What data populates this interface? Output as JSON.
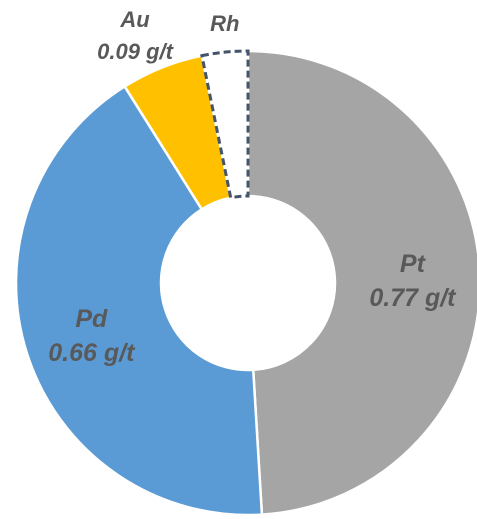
{
  "chart_data": {
    "type": "pie",
    "variant": "donut",
    "title": "",
    "unit": "g/t",
    "slices": [
      {
        "name": "Pt",
        "value": 0.77,
        "value_label": "0.77 g/t",
        "color": "#A5A5A5"
      },
      {
        "name": "Pd",
        "value": 0.66,
        "value_label": "0.66 g/t",
        "color": "#5B9BD5"
      },
      {
        "name": "Au",
        "value": 0.09,
        "value_label": "0.09 g/t",
        "color": "#FFC000"
      },
      {
        "name": "Rh",
        "value": 0.05,
        "value_label": "",
        "color": "#FFFFFF",
        "style": "dashed-outline"
      }
    ],
    "legend": "none",
    "label_color": "#595959",
    "outline_color": "#44546A"
  }
}
